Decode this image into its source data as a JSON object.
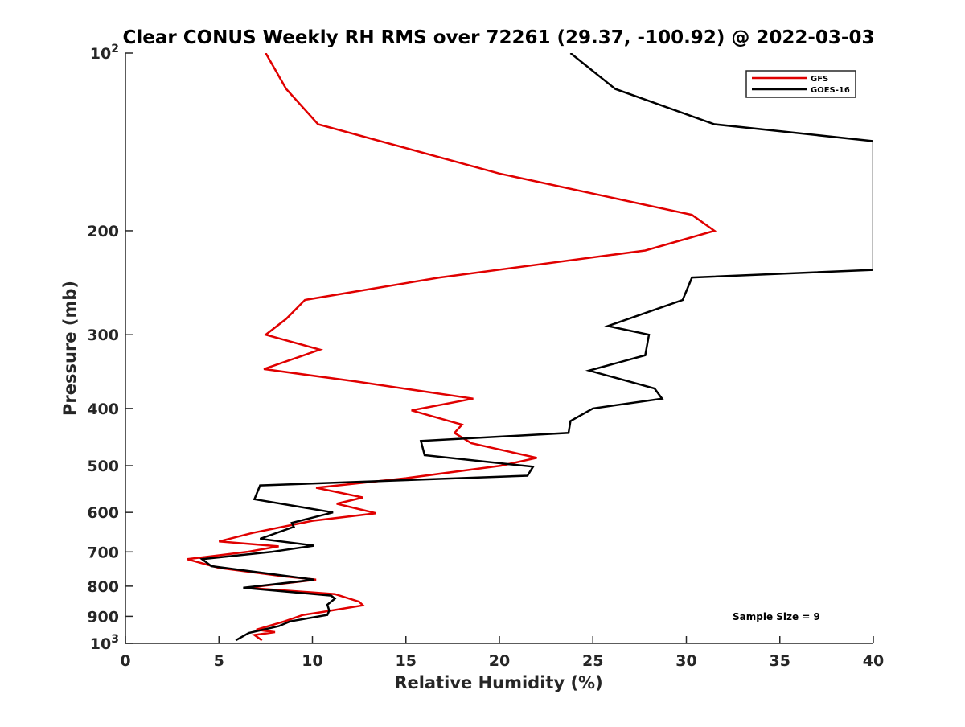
{
  "chart_data": {
    "type": "line",
    "title": "Clear CONUS Weekly RH RMS over 72261 (29.37, -100.92) @ 2022-03-03",
    "xlabel": "Relative Humidity (%)",
    "ylabel": "Pressure (mb)",
    "xlim": [
      0,
      40
    ],
    "ylim": [
      100,
      1000
    ],
    "yscale": "log",
    "y_reversed": true,
    "x_ticks": [
      0,
      5,
      10,
      15,
      20,
      25,
      30,
      35,
      40
    ],
    "y_ticks": [
      100,
      200,
      300,
      400,
      500,
      600,
      700,
      800,
      900,
      1000
    ],
    "y_tick_labels": {
      "100": {
        "base": "10",
        "exp": "2"
      },
      "200": {
        "base": "200"
      },
      "300": {
        "base": "300"
      },
      "400": {
        "base": "400"
      },
      "500": {
        "base": "500"
      },
      "600": {
        "base": "600"
      },
      "700": {
        "base": "700"
      },
      "800": {
        "base": "800"
      },
      "900": {
        "base": "900"
      },
      "1000": {
        "base": "10",
        "exp": "3"
      }
    },
    "grid": false,
    "legend_position": "top-right",
    "series": [
      {
        "name": "GFS",
        "color": "#e00000",
        "points": [
          [
            7.5,
            100
          ],
          [
            8.6,
            115
          ],
          [
            10.3,
            132
          ],
          [
            20.0,
            160
          ],
          [
            30.3,
            188
          ],
          [
            31.5,
            200
          ],
          [
            27.8,
            216
          ],
          [
            16.8,
            240
          ],
          [
            9.6,
            262
          ],
          [
            8.6,
            282
          ],
          [
            7.5,
            300
          ],
          [
            10.4,
            318
          ],
          [
            7.4,
            343
          ],
          [
            12.3,
            360
          ],
          [
            18.6,
            385
          ],
          [
            15.3,
            403
          ],
          [
            18.0,
            426
          ],
          [
            17.6,
            440
          ],
          [
            18.5,
            458
          ],
          [
            22.0,
            485
          ],
          [
            20.1,
            500
          ],
          [
            15.0,
            525
          ],
          [
            10.2,
            545
          ],
          [
            12.7,
            566
          ],
          [
            11.3,
            580
          ],
          [
            13.4,
            602
          ],
          [
            10.0,
            620
          ],
          [
            6.8,
            650
          ],
          [
            5.0,
            672
          ],
          [
            8.2,
            685
          ],
          [
            6.5,
            700
          ],
          [
            3.3,
            720
          ],
          [
            5.0,
            745
          ],
          [
            8.5,
            770
          ],
          [
            10.2,
            780
          ],
          [
            6.5,
            805
          ],
          [
            11.2,
            825
          ],
          [
            12.5,
            850
          ],
          [
            12.7,
            862
          ],
          [
            10.5,
            885
          ],
          [
            9.5,
            895
          ],
          [
            8.5,
            918
          ],
          [
            7.0,
            948
          ],
          [
            8.0,
            957
          ],
          [
            6.9,
            968
          ],
          [
            7.3,
            988
          ]
        ]
      },
      {
        "name": "GOES-16",
        "color": "#000000",
        "points": [
          [
            23.8,
            100
          ],
          [
            26.2,
            115
          ],
          [
            31.5,
            132
          ],
          [
            40.0,
            141
          ],
          [
            40.0,
            233
          ],
          [
            30.3,
            240
          ],
          [
            29.8,
            262
          ],
          [
            25.8,
            290
          ],
          [
            28.0,
            300
          ],
          [
            27.8,
            325
          ],
          [
            24.8,
            345
          ],
          [
            28.3,
            370
          ],
          [
            28.7,
            385
          ],
          [
            25.0,
            400
          ],
          [
            23.8,
            420
          ],
          [
            23.7,
            440
          ],
          [
            15.8,
            454
          ],
          [
            16.0,
            480
          ],
          [
            21.8,
            502
          ],
          [
            21.5,
            520
          ],
          [
            7.2,
            540
          ],
          [
            6.9,
            570
          ],
          [
            11.1,
            600
          ],
          [
            8.9,
            625
          ],
          [
            9.0,
            635
          ],
          [
            7.2,
            665
          ],
          [
            10.1,
            683
          ],
          [
            7.8,
            700
          ],
          [
            4.1,
            720
          ],
          [
            4.6,
            740
          ],
          [
            10.1,
            780
          ],
          [
            6.3,
            805
          ],
          [
            11.0,
            830
          ],
          [
            11.2,
            840
          ],
          [
            10.8,
            860
          ],
          [
            10.9,
            880
          ],
          [
            10.8,
            895
          ],
          [
            8.8,
            918
          ],
          [
            8.2,
            935
          ],
          [
            6.6,
            960
          ],
          [
            5.9,
            988
          ]
        ]
      }
    ],
    "annotation": "Sample Size = 9"
  }
}
